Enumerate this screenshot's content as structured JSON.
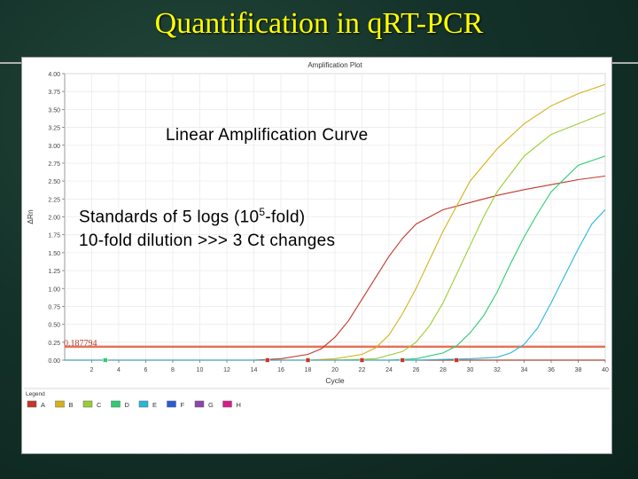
{
  "slide": {
    "title": "Quantification in q",
    "title_suffix": "RT-PCR"
  },
  "chart_data": {
    "type": "line",
    "title": "Amplification Plot",
    "xlabel": "Cycle",
    "ylabel": "ΔRn",
    "xlim": [
      0,
      40
    ],
    "ylim": [
      0,
      4.0
    ],
    "x_ticks": [
      2,
      4,
      6,
      8,
      10,
      12,
      14,
      16,
      18,
      20,
      22,
      24,
      26,
      28,
      30,
      32,
      34,
      36,
      38,
      40
    ],
    "y_ticks": [
      "0.00",
      "0.25",
      "0.50",
      "0.75",
      "1.00",
      "1.25",
      "1.50",
      "1.75",
      "2.00",
      "2.25",
      "2.50",
      "2.75",
      "3.00",
      "3.25",
      "3.50",
      "3.75",
      "4.00"
    ],
    "grid": true,
    "threshold": {
      "value": 0.187794,
      "label": "0.187794",
      "color": "#e05a3a"
    },
    "series": [
      {
        "color": "#c0392b",
        "x": [
          0,
          14,
          16,
          18,
          19,
          20,
          21,
          22,
          23,
          24,
          25,
          26,
          28,
          30,
          32,
          34,
          36,
          38,
          40
        ],
        "y": [
          0,
          0,
          0.02,
          0.08,
          0.16,
          0.32,
          0.55,
          0.85,
          1.15,
          1.45,
          1.7,
          1.9,
          2.1,
          2.2,
          2.3,
          2.38,
          2.45,
          2.52,
          2.57
        ]
      },
      {
        "color": "#d4b21a",
        "x": [
          0,
          18,
          20,
          22,
          23,
          24,
          25,
          26,
          27,
          28,
          29,
          30,
          32,
          34,
          36,
          38,
          40
        ],
        "y": [
          0,
          0,
          0.02,
          0.08,
          0.17,
          0.35,
          0.65,
          1.0,
          1.4,
          1.8,
          2.15,
          2.5,
          2.95,
          3.3,
          3.55,
          3.72,
          3.85
        ]
      },
      {
        "color": "#9acd32",
        "x": [
          0,
          20,
          23,
          25,
          26,
          27,
          28,
          29,
          30,
          31,
          32,
          34,
          36,
          38,
          40
        ],
        "y": [
          0,
          0,
          0.02,
          0.12,
          0.25,
          0.48,
          0.8,
          1.2,
          1.6,
          2.0,
          2.35,
          2.85,
          3.15,
          3.3,
          3.45
        ]
      },
      {
        "color": "#2ecc71",
        "x": [
          0,
          24,
          26,
          28,
          29,
          30,
          31,
          32,
          33,
          34,
          35,
          36,
          38,
          40
        ],
        "y": [
          0,
          0,
          0.02,
          0.1,
          0.2,
          0.38,
          0.62,
          0.95,
          1.35,
          1.72,
          2.05,
          2.35,
          2.72,
          2.85
        ]
      },
      {
        "color": "#29b6d8",
        "x": [
          0,
          26,
          30,
          32,
          33,
          34,
          35,
          36,
          37,
          38,
          39,
          40
        ],
        "y": [
          0,
          0,
          0.02,
          0.04,
          0.1,
          0.22,
          0.45,
          0.8,
          1.18,
          1.55,
          1.9,
          2.1
        ]
      }
    ],
    "markers": [
      {
        "x": 3,
        "y": 0,
        "color": "#2ecc71"
      },
      {
        "x": 15,
        "y": 0,
        "color": "#c0392b"
      },
      {
        "x": 18,
        "y": 0,
        "color": "#c0392b"
      },
      {
        "x": 22,
        "y": 0,
        "color": "#c0392b"
      },
      {
        "x": 25,
        "y": 0,
        "color": "#c0392b"
      },
      {
        "x": 29,
        "y": 0,
        "color": "#c0392b"
      }
    ],
    "legend": {
      "title": "Legend",
      "position": "bottom",
      "items": [
        {
          "label": "A",
          "color": "#c0392b"
        },
        {
          "label": "B",
          "color": "#d4b21a"
        },
        {
          "label": "C",
          "color": "#9acd32"
        },
        {
          "label": "D",
          "color": "#2ecc71"
        },
        {
          "label": "E",
          "color": "#29b6d8"
        },
        {
          "label": "F",
          "color": "#2a5bd7"
        },
        {
          "label": "G",
          "color": "#8e44ad"
        },
        {
          "label": "H",
          "color": "#d81b8c"
        }
      ]
    },
    "annotations": {
      "curve_type": "Linear Amplification Curve",
      "standards_prefix": "Standards of 5 logs (10",
      "standards_exp": "5",
      "standards_suffix": "-fold)",
      "dilution_note": "10-fold dilution >>> 3 Ct changes"
    }
  }
}
